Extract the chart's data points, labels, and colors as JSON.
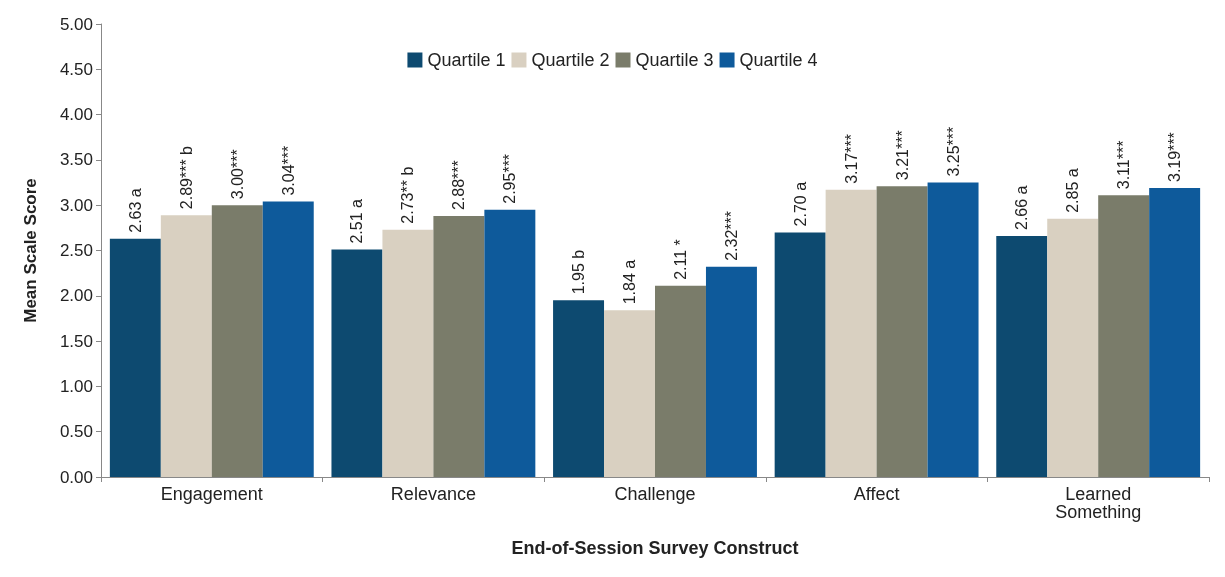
{
  "chart_data": {
    "type": "bar",
    "xlabel": "End-of-Session Survey Construct",
    "ylabel": "Mean Scale Score",
    "categories": [
      "Engagement",
      "Relevance",
      "Challenge",
      "Affect",
      "Learned\nSomething"
    ],
    "series": [
      {
        "name": "Quartile 1",
        "color": "#0d4a70",
        "values": [
          2.63,
          2.51,
          1.95,
          2.7,
          2.66
        ],
        "value_labels": [
          "2.63 a",
          "2.51 a",
          "1.95 b",
          "2.70 a",
          "2.66 a"
        ]
      },
      {
        "name": "Quartile 2",
        "color": "#d9d0c1",
        "values": [
          2.89,
          2.73,
          1.84,
          3.17,
          2.85
        ],
        "value_labels": [
          "2.89*** b",
          "2.73** b",
          "1.84 a",
          "3.17***",
          "2.85 a"
        ]
      },
      {
        "name": "Quartile 3",
        "color": "#7a7c6a",
        "values": [
          3.0,
          2.88,
          2.11,
          3.21,
          3.11
        ],
        "value_labels": [
          "3.00***",
          "2.88***",
          "2.11 *",
          "3.21***",
          "3.11***"
        ]
      },
      {
        "name": "Quartile 4",
        "color": "#0e5a9b",
        "values": [
          3.04,
          2.95,
          2.32,
          3.25,
          3.19
        ],
        "value_labels": [
          "3.04***",
          "2.95***",
          "2.32***",
          "3.25***",
          "3.19***"
        ]
      }
    ],
    "ylim": [
      0,
      5
    ],
    "yticks": [
      {
        "value": 0,
        "label": "0.00"
      },
      {
        "value": 0.5,
        "label": "0.50"
      },
      {
        "value": 1,
        "label": "1.00"
      },
      {
        "value": 1.5,
        "label": "1.50"
      },
      {
        "value": 2,
        "label": "2.00"
      },
      {
        "value": 2.5,
        "label": "2.50"
      },
      {
        "value": 3,
        "label": "3.00"
      },
      {
        "value": 3.5,
        "label": "3.50"
      },
      {
        "value": 4,
        "label": "4.00"
      },
      {
        "value": 4.5,
        "label": "4.50"
      },
      {
        "value": 5,
        "label": "5.00"
      }
    ],
    "grid": false,
    "legend": "top"
  }
}
